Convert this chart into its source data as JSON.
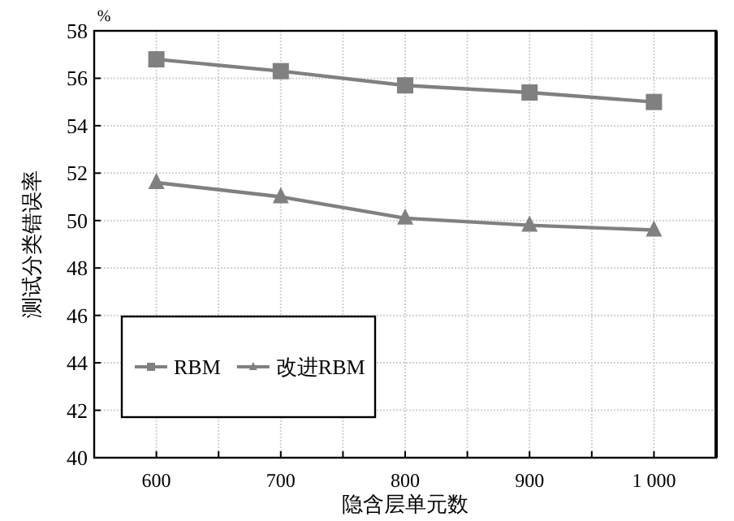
{
  "chart_data": {
    "type": "line",
    "xlabel": "隐含层单元数",
    "ylabel": "测试分类错误率",
    "annotations": [
      "%"
    ],
    "x": [
      600,
      700,
      800,
      900,
      1000
    ],
    "series": [
      {
        "name": "RBM",
        "color": "#808080",
        "marker": "square",
        "values": [
          56.8,
          56.3,
          55.7,
          55.4,
          55.0
        ]
      },
      {
        "name": "改进RBM",
        "color": "#808080",
        "marker": "triangle",
        "values": [
          51.6,
          51.0,
          50.1,
          49.8,
          49.6
        ]
      }
    ],
    "xlim": [
      550,
      1050
    ],
    "xticks": [
      {
        "value": 600,
        "label": "600"
      },
      {
        "value": 650,
        "label": null
      },
      {
        "value": 700,
        "label": "700"
      },
      {
        "value": 750,
        "label": null
      },
      {
        "value": 800,
        "label": "800"
      },
      {
        "value": 850,
        "label": null
      },
      {
        "value": 900,
        "label": "900"
      },
      {
        "value": 950,
        "label": null
      },
      {
        "value": 1000,
        "label": "1 000"
      }
    ],
    "ylim": [
      40,
      58
    ],
    "yticks": [
      40,
      42,
      44,
      46,
      48,
      50,
      52,
      54,
      56,
      58
    ],
    "grid": true,
    "legend": "bottom left",
    "line_style": "solid"
  }
}
